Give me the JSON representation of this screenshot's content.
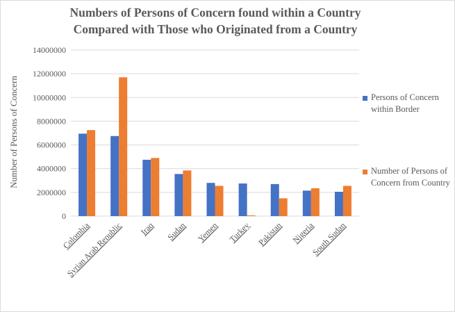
{
  "chart_data": {
    "type": "bar",
    "title": [
      "Numbers of Persons of Concern found within a Country",
      "Compared with Those who Originated from a Country"
    ],
    "xlabel": "",
    "ylabel": "Number of  Persons of Concern",
    "ylim": [
      0,
      14000000
    ],
    "yticks": [
      "0",
      "2000000",
      "4000000",
      "6000000",
      "8000000",
      "10000000",
      "12000000",
      "14000000"
    ],
    "categories": [
      "Colombia",
      "Syrian Arab Republic",
      "Iraq",
      "Sudan",
      "Yemen",
      "Turkey",
      "Pakistan",
      "Nigeria",
      "South Sudan"
    ],
    "series": [
      {
        "name": "Persons of Concern within Border",
        "color": "#4472c4",
        "values": [
          6950000,
          6750000,
          4750000,
          3550000,
          2800000,
          2750000,
          2700000,
          2150000,
          2050000
        ]
      },
      {
        "name": "Number of Persons of Concern from Country",
        "color": "#ed7d31",
        "values": [
          7250000,
          11700000,
          4900000,
          3850000,
          2550000,
          60000,
          1500000,
          2350000,
          2550000
        ]
      }
    ],
    "grid": true,
    "legend_position": "right"
  }
}
